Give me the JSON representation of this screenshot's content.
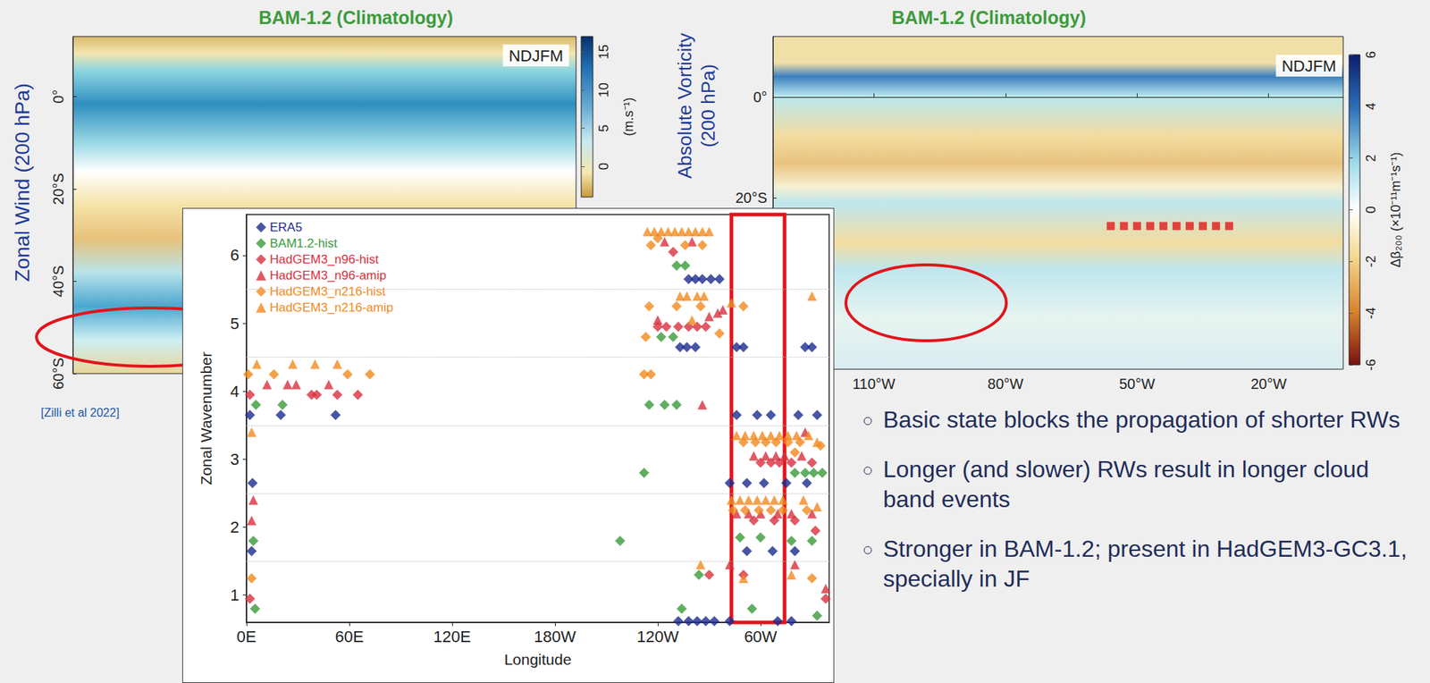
{
  "slide": {
    "panels": [
      {
        "title": "BAM-1.2 (Climatology)",
        "side_label": "Zonal Wind (200 hPa)",
        "season": "NDJFM",
        "ylim": [
          -60,
          13
        ],
        "yticks": [
          {
            "value": 0,
            "label": "0°"
          },
          {
            "value": -20,
            "label": "20°S"
          },
          {
            "value": -40,
            "label": "40°S"
          },
          {
            "value": -60,
            "label": "60°S"
          }
        ],
        "colorbar": {
          "lim": [
            -4,
            17
          ],
          "ticks": [
            0,
            5,
            10,
            15
          ],
          "label": "(m.s⁻¹)"
        }
      },
      {
        "title": "BAM-1.2 (Climatology)",
        "side_label": "Absolute Vorticity (200 hPa)",
        "season": "NDJFM",
        "xlim": [
          -133,
          -3
        ],
        "xticks": [
          {
            "value": -110,
            "label": "110°W"
          },
          {
            "value": -80,
            "label": "80°W"
          },
          {
            "value": -50,
            "label": "50°W"
          },
          {
            "value": -20,
            "label": "20°W"
          }
        ],
        "ylim": [
          -54,
          12
        ],
        "yticks": [
          {
            "value": 0,
            "label": "0°"
          },
          {
            "value": -20,
            "label": "20°S"
          }
        ],
        "colorbar": {
          "lim": [
            -6,
            6
          ],
          "ticks": [
            -6,
            -4,
            -2,
            0,
            2,
            4,
            6
          ],
          "label": "Δβ₂₀₀ (×10⁻¹¹m⁻¹s⁻¹)"
        },
        "points": {
          "color": "#e3191c",
          "marker": "square",
          "lon": [
            -56,
            -53,
            -50,
            -47,
            -44,
            -41,
            -38,
            -35,
            -32,
            -29
          ],
          "lat": [
            -25.6,
            -25.6,
            -25.6,
            -25.6,
            -25.6,
            -25.6,
            -25.6,
            -25.6,
            -25.6,
            -25.6
          ]
        }
      }
    ],
    "citation": "[Zilli et al 2022]",
    "bullets": [
      "Basic state blocks the propagation of shorter RWs",
      "Longer (and slower) RWs result in longer cloud band events",
      "Stronger in BAM-1.2; present in HadGEM3-GC3.1, specially in JF"
    ]
  },
  "chart_data": {
    "type": "scatter",
    "x_label": "Longitude",
    "y_label": "Zonal Wavenumber",
    "xlim": [
      0,
      340
    ],
    "xticks": [
      {
        "value": 0,
        "label": "0E"
      },
      {
        "value": 60,
        "label": "60E"
      },
      {
        "value": 120,
        "label": "120E"
      },
      {
        "value": 180,
        "label": "180W"
      },
      {
        "value": 240,
        "label": "120W"
      },
      {
        "value": 300,
        "label": "60W"
      }
    ],
    "ylim": [
      0.6,
      6.6
    ],
    "yticks": [
      1,
      2,
      3,
      4,
      5,
      6
    ],
    "grid": true,
    "legend": "upper left",
    "highlight": {
      "xlim": [
        283,
        314
      ],
      "color": "#e3141b"
    },
    "series": [
      {
        "name": "ERA5",
        "color": "#1c2b8f",
        "marker": "diamond",
        "x": [
          3,
          3.5,
          2,
          20,
          52,
          258,
          262,
          266,
          271,
          276,
          253,
          257,
          262,
          252,
          258,
          263,
          268,
          273,
          286,
          290,
          326,
          330,
          286,
          298,
          306,
          322,
          333,
          282,
          292,
          302,
          315,
          327,
          292,
          307,
          320,
          282,
          310,
          318
        ],
        "values": [
          1.65,
          2.65,
          3.65,
          3.65,
          3.65,
          5.65,
          5.65,
          5.65,
          5.65,
          5.65,
          4.65,
          4.65,
          4.65,
          0.62,
          0.62,
          0.62,
          0.62,
          0.62,
          4.65,
          4.65,
          4.65,
          4.65,
          3.65,
          3.65,
          3.65,
          3.65,
          3.65,
          2.65,
          2.65,
          2.65,
          2.65,
          2.65,
          1.65,
          1.65,
          1.65,
          0.62,
          0.62,
          0.62
        ]
      },
      {
        "name": "BAM1.2-hist",
        "color": "#3a9a3a",
        "marker": "diamond",
        "x": [
          4,
          5,
          5.5,
          21,
          251,
          256,
          242,
          249,
          235,
          244,
          251,
          232,
          218,
          254,
          264,
          300,
          288,
          295,
          326,
          331,
          336,
          320,
          318,
          330,
          333
        ],
        "values": [
          1.8,
          0.8,
          3.8,
          3.8,
          5.85,
          5.85,
          4.8,
          4.8,
          3.8,
          3.8,
          3.8,
          2.8,
          1.8,
          0.8,
          1.3,
          1.85,
          1.85,
          0.8,
          2.8,
          2.8,
          2.8,
          2.8,
          1.8,
          1.8,
          0.7
        ]
      },
      {
        "name": "HadGEM3_n96-hist",
        "color": "#d9303e",
        "marker": "diamond",
        "x": [
          2,
          2,
          38,
          41,
          53,
          65,
          240,
          245,
          252,
          258,
          263,
          268,
          249,
          300,
          306,
          311,
          318,
          330,
          296,
          308,
          320,
          332,
          338,
          290,
          270
        ],
        "values": [
          0.95,
          3.95,
          3.95,
          3.95,
          3.95,
          3.95,
          4.95,
          4.95,
          4.95,
          4.95,
          4.95,
          4.95,
          6.05,
          2.95,
          2.95,
          2.95,
          2.95,
          2.95,
          2.1,
          2.1,
          2.1,
          1.95,
          0.95,
          1.3,
          1.3
        ]
      },
      {
        "name": "HadGEM3_n96-amip",
        "color": "#d9303e",
        "marker": "triangle",
        "x": [
          3,
          4,
          12,
          24,
          29,
          48,
          244,
          260,
          240,
          270,
          278,
          275,
          266,
          296,
          303,
          309,
          314,
          324,
          286,
          293,
          300,
          310,
          318,
          330,
          282,
          320,
          338,
          326
        ],
        "values": [
          2.1,
          2.4,
          4.1,
          4.1,
          4.1,
          4.1,
          6.2,
          6.2,
          5.05,
          5.1,
          5.2,
          5.15,
          3.8,
          3.05,
          3.05,
          3.05,
          3.05,
          3.05,
          2.2,
          2.2,
          2.2,
          2.2,
          2.2,
          2.2,
          1.45,
          1.45,
          1.1,
          3.4
        ]
      },
      {
        "name": "HadGEM3_n216-hist",
        "color": "#f28a1e",
        "marker": "diamond",
        "x": [
          3,
          1,
          16,
          59,
          72,
          236,
          256,
          266,
          240,
          233,
          251,
          265,
          235,
          276,
          232,
          236,
          290,
          297,
          303,
          309,
          316,
          323,
          284,
          291,
          299,
          306,
          313,
          327,
          290,
          320,
          335,
          330
        ],
        "values": [
          1.25,
          4.25,
          4.25,
          4.25,
          4.25,
          6.15,
          6.15,
          6.15,
          6.25,
          4.8,
          5.25,
          5.25,
          5.25,
          4.85,
          4.25,
          4.25,
          3.25,
          3.25,
          3.25,
          3.25,
          3.25,
          3.25,
          2.25,
          2.25,
          2.25,
          2.25,
          2.25,
          2.25,
          5.25,
          3.1,
          3.2,
          1.25
        ]
      },
      {
        "name": "HadGEM3_n216-amip",
        "color": "#f28a1e",
        "marker": "triangle",
        "x": [
          3,
          6,
          27,
          40,
          53,
          234,
          238,
          242,
          246,
          250,
          254,
          258,
          262,
          266,
          270,
          253,
          257,
          263,
          267,
          260,
          286,
          291,
          296,
          301,
          306,
          311,
          316,
          321,
          328,
          333,
          283,
          288,
          293,
          298,
          303,
          308,
          313,
          325,
          333,
          265,
          290,
          318,
          283,
          330
        ],
        "values": [
          3.4,
          4.4,
          4.4,
          4.4,
          4.4,
          6.35,
          6.35,
          6.35,
          6.35,
          6.35,
          6.35,
          6.35,
          6.35,
          6.35,
          6.35,
          5.4,
          5.4,
          5.4,
          5.4,
          5.05,
          3.35,
          3.35,
          3.35,
          3.35,
          3.35,
          3.35,
          3.35,
          3.35,
          3.35,
          3.25,
          2.4,
          2.4,
          2.4,
          2.4,
          2.4,
          2.4,
          2.4,
          2.4,
          2.3,
          1.45,
          1.25,
          1.3,
          5.3,
          5.4
        ]
      }
    ]
  }
}
